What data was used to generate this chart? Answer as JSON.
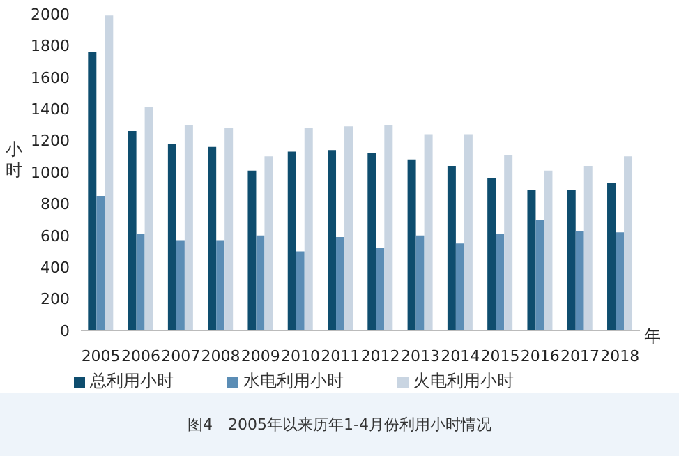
{
  "chart_data": {
    "type": "bar",
    "ylabel": "小时",
    "xlabel": "年",
    "categories": [
      "2005",
      "2006",
      "2007",
      "2008",
      "2009",
      "2010",
      "2011",
      "2012",
      "2013",
      "2014",
      "2015",
      "2016",
      "2017",
      "2018"
    ],
    "series": [
      {
        "name": "总利用小时",
        "color": "#0e4d6e",
        "values": [
          1760,
          1260,
          1180,
          1160,
          1010,
          1130,
          1140,
          1120,
          1080,
          1040,
          960,
          890,
          890,
          930
        ]
      },
      {
        "name": "水电利用小时",
        "color": "#5b8db5",
        "values": [
          850,
          610,
          570,
          570,
          600,
          500,
          590,
          520,
          600,
          550,
          610,
          700,
          630,
          620
        ]
      },
      {
        "name": "火电利用小时",
        "color": "#c9d5e2",
        "values": [
          1990,
          1410,
          1300,
          1280,
          1100,
          1280,
          1290,
          1300,
          1240,
          1240,
          1110,
          1010,
          1040,
          1100
        ]
      }
    ],
    "ylim": [
      0,
      2000
    ],
    "yticks": [
      0,
      200,
      400,
      600,
      800,
      1000,
      1200,
      1400,
      1600,
      1800,
      2000
    ],
    "grid": false,
    "legend": "bottom",
    "annotations": [
      "图4　2005年以来历年1-4月份利用小时情况"
    ]
  }
}
